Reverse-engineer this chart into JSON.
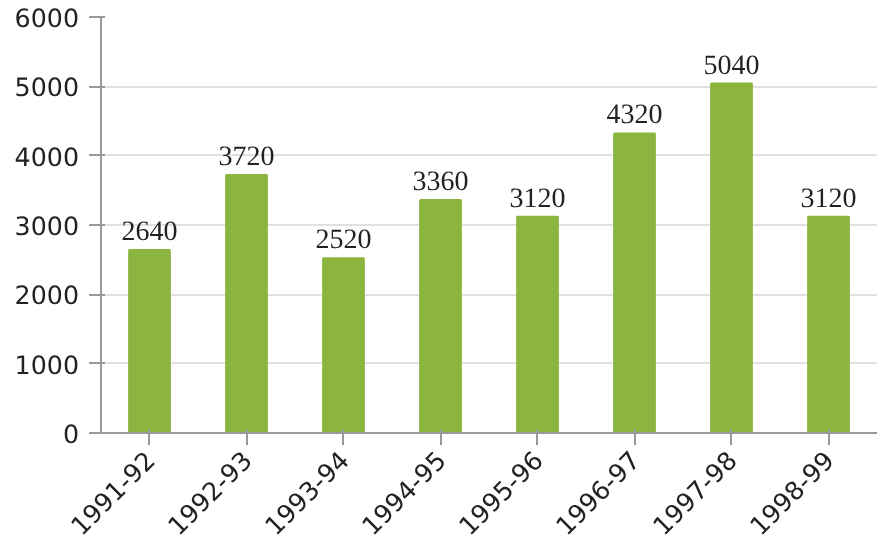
{
  "chart_data": {
    "type": "bar",
    "categories": [
      "1991-92",
      "1992-93",
      "1993-94",
      "1994-95",
      "1995-96",
      "1996-97",
      "1997-98",
      "1998-99"
    ],
    "values": [
      2640,
      3720,
      2520,
      3360,
      3120,
      4320,
      5040,
      3120
    ],
    "color": "#8cb53f",
    "ylim": [
      0,
      6000
    ],
    "yticks": [
      0,
      1000,
      2000,
      3000,
      4000,
      5000,
      6000
    ],
    "grid": "y",
    "data_labels": true
  }
}
